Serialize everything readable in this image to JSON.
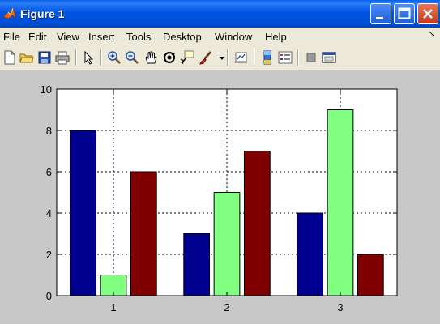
{
  "window": {
    "title": "Figure 1",
    "icon": "matlab-icon",
    "controls": [
      "minimize-icon",
      "maximize-icon",
      "close-icon"
    ]
  },
  "menubar": {
    "items": [
      "File",
      "Edit",
      "View",
      "Insert",
      "Tools",
      "Desktop",
      "Window",
      "Help"
    ],
    "dock_arrow": "↘"
  },
  "toolbar": {
    "tools": [
      "new-figure-icon",
      "open-file-icon",
      "save-icon",
      "print-icon",
      "edit-plot-icon",
      "zoom-in-icon",
      "zoom-out-icon",
      "pan-icon",
      "rotate-3d-icon",
      "data-cursor-icon",
      "brush-icon",
      "link-plot-icon",
      "insert-colorbar-icon",
      "insert-legend-icon",
      "hide-plot-tools-icon",
      "show-plot-tools-icon"
    ]
  },
  "colors": {
    "series1": "#000090",
    "series2": "#80ff80",
    "series3": "#800000"
  },
  "chart_data": {
    "type": "bar",
    "categories": [
      "1",
      "2",
      "3"
    ],
    "series": [
      {
        "values": [
          8,
          3,
          4
        ]
      },
      {
        "values": [
          1,
          5,
          9
        ]
      },
      {
        "values": [
          6,
          7,
          2
        ]
      }
    ],
    "ylim": [
      0,
      10
    ],
    "yticks": [
      "0",
      "2",
      "4",
      "6",
      "8",
      "10"
    ],
    "grid": true,
    "legend": "none"
  }
}
